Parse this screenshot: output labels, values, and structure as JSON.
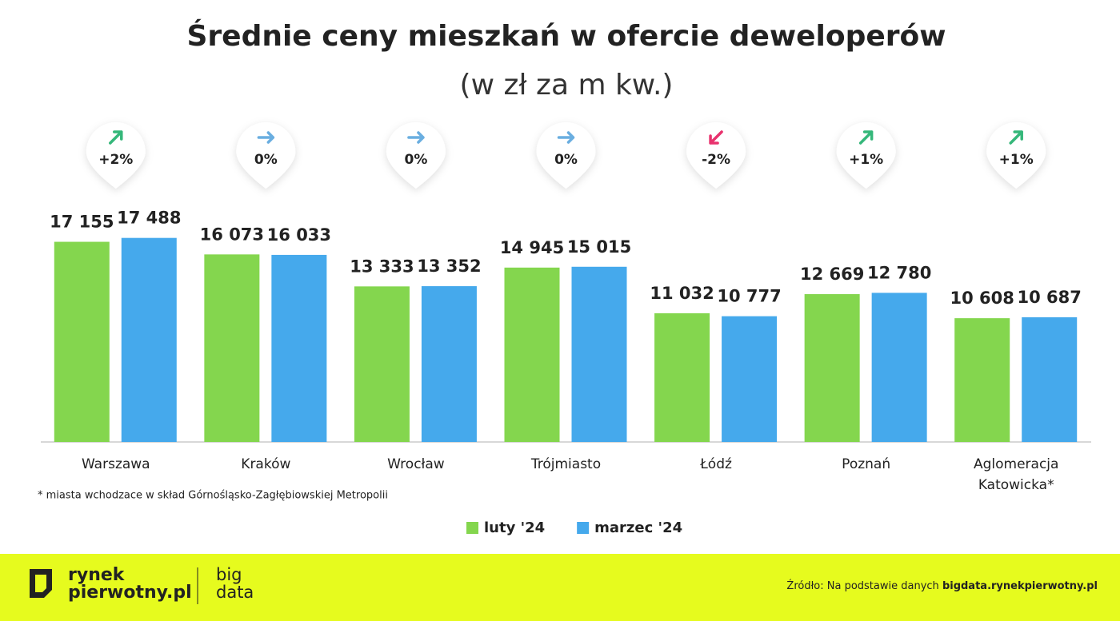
{
  "chart_data": {
    "type": "bar",
    "title": "Średnie ceny mieszkań w ofercie deweloperów",
    "subtitle": "(w zł za m kw.)",
    "categories": [
      "Warszawa",
      "Kraków",
      "Wrocław",
      "Trójmiasto",
      "Łódź",
      "Poznań",
      "Aglomeracja Katowicka*"
    ],
    "series": [
      {
        "name": "luty '24",
        "color": "#84d64e",
        "values": [
          17155,
          16073,
          13333,
          14945,
          11032,
          12669,
          10608
        ],
        "value_labels": [
          "17 155",
          "16 073",
          "13 333",
          "14 945",
          "11 032",
          "12 669",
          "10 608"
        ]
      },
      {
        "name": "marzec '24",
        "color": "#45a9ec",
        "values": [
          17488,
          16033,
          13352,
          15015,
          10777,
          12780,
          10687
        ],
        "value_labels": [
          "17 488",
          "16 033",
          "13 352",
          "15 015",
          "10 777",
          "12 780",
          "10 687"
        ]
      }
    ],
    "changes": {
      "values": [
        2,
        0,
        0,
        0,
        -2,
        1,
        1
      ],
      "labels": [
        "+2%",
        "0%",
        "0%",
        "0%",
        "-2%",
        "+1%",
        "+1%"
      ]
    },
    "ylim": [
      0,
      20000
    ],
    "footnote": "* miasta wchodzace w skład Górnośląsko-Zagłębiowskiej Metropolii",
    "brand": {
      "line1": "rynek",
      "line2": "pierwotny.pl",
      "big": "big",
      "data": "data"
    },
    "source_text": "Źródło: Na podstawie danych",
    "source_link": "bigdata.rynekpierwotny.pl"
  }
}
